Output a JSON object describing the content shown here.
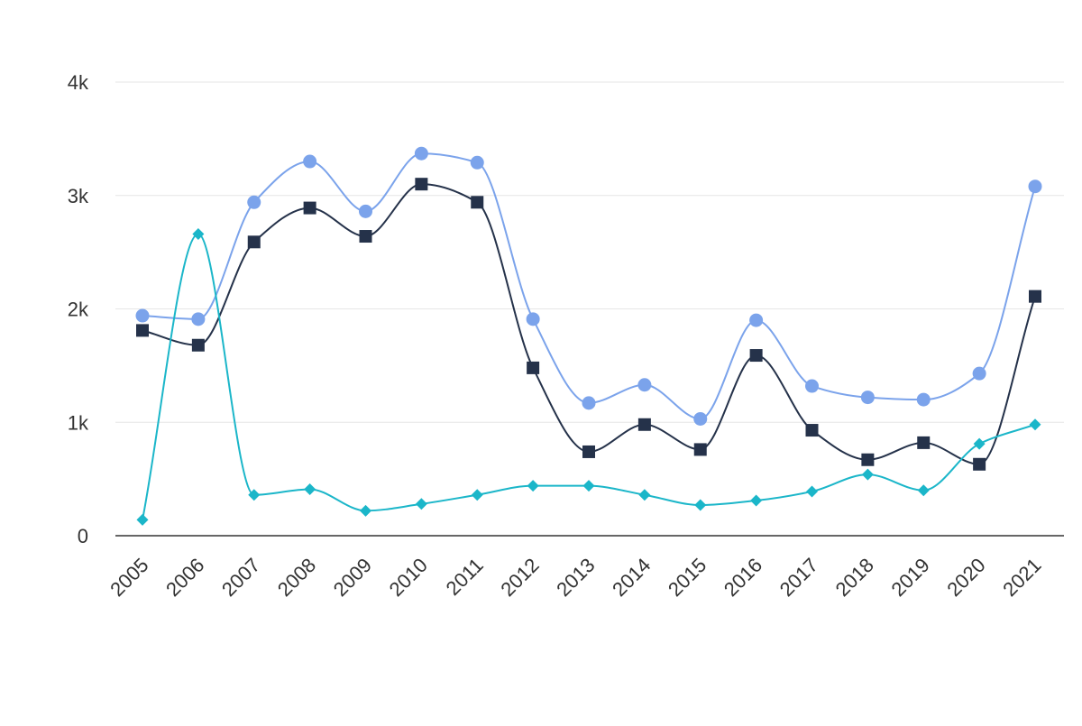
{
  "chart_data": {
    "type": "line",
    "title": "",
    "xlabel": "",
    "ylabel": "",
    "ylim": [
      0,
      4000
    ],
    "y_ticks": [
      {
        "value": 0,
        "label": "0"
      },
      {
        "value": 1000,
        "label": "1k"
      },
      {
        "value": 2000,
        "label": "2k"
      },
      {
        "value": 3000,
        "label": "3k"
      },
      {
        "value": 4000,
        "label": "4k"
      }
    ],
    "categories": [
      "2005",
      "2006",
      "2007",
      "2008",
      "2009",
      "2010",
      "2011",
      "2012",
      "2013",
      "2014",
      "2015",
      "2016",
      "2017",
      "2018",
      "2019",
      "2020",
      "2021"
    ],
    "grid": true,
    "legend": "none",
    "curve": "smooth",
    "series": [
      {
        "color": "#7ba3eb",
        "marker": "circle",
        "values": [
          1940,
          1910,
          2940,
          3300,
          2860,
          3370,
          3290,
          1910,
          1170,
          1330,
          1030,
          1900,
          1320,
          1220,
          1200,
          1430,
          3080
        ]
      },
      {
        "color": "#25324a",
        "marker": "square",
        "values": [
          1810,
          1680,
          2590,
          2890,
          2640,
          3100,
          2940,
          1480,
          740,
          980,
          760,
          1590,
          930,
          670,
          820,
          630,
          2110
        ]
      },
      {
        "color": "#1bb6c9",
        "marker": "diamond",
        "values": [
          140,
          2660,
          360,
          410,
          220,
          280,
          360,
          440,
          440,
          360,
          270,
          310,
          390,
          540,
          400,
          810,
          980
        ]
      }
    ]
  }
}
